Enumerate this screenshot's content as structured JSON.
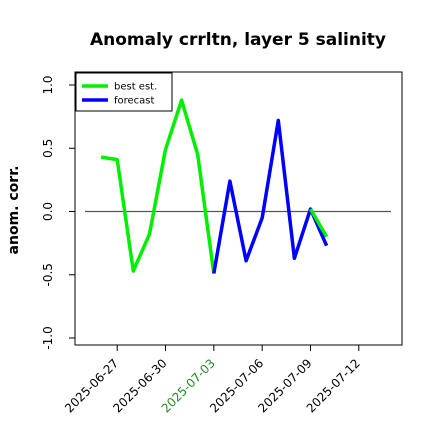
{
  "chart_data": {
    "type": "line",
    "title": "Anomaly crrltn, layer 5 salinity",
    "xlabel": "",
    "ylabel": "anom. corr.",
    "ylim": [
      -1.0,
      1.0
    ],
    "xlim": [
      "2025-06-25",
      "2025-07-14"
    ],
    "y_ticks": [
      "-1.0",
      "-0.5",
      "0.0",
      "0.5",
      "1.0"
    ],
    "x_ticks": [
      "2025-06-27",
      "2025-06-30",
      "2025-07-03",
      "2025-07-06",
      "2025-07-09",
      "2025-07-12"
    ],
    "highlighted_x_tick": "2025-07-03",
    "highlight_color": "#228B22",
    "reference_line_y": 0.0,
    "legend_position": "top-left",
    "series": [
      {
        "name": "best est.",
        "color": "#00ee00",
        "x": [
          "2025-06-26",
          "2025-06-27",
          "2025-06-28",
          "2025-06-29",
          "2025-06-30",
          "2025-07-01",
          "2025-07-02",
          "2025-07-03"
        ],
        "values": [
          0.43,
          0.41,
          -0.47,
          -0.18,
          0.49,
          0.88,
          0.45,
          -0.49
        ]
      },
      {
        "name": "forecast",
        "color": "#0000ff",
        "x": [
          "2025-07-03",
          "2025-07-04",
          "2025-07-05",
          "2025-07-06",
          "2025-07-07",
          "2025-07-08",
          "2025-07-09",
          "2025-07-10"
        ],
        "values": [
          -0.49,
          0.24,
          -0.39,
          -0.05,
          0.72,
          -0.37,
          0.02,
          -0.27
        ]
      },
      {
        "name": "",
        "color": "#00ee00",
        "x": [
          "2025-07-09",
          "2025-07-10"
        ],
        "values": [
          0.02,
          -0.2
        ]
      }
    ]
  }
}
